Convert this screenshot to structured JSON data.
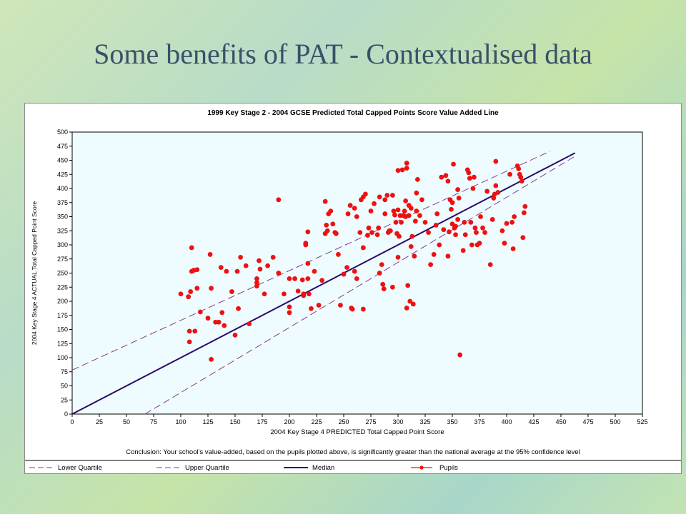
{
  "slide": {
    "title": "Some benefits of PAT - Contextualised data"
  },
  "colors": {
    "pupil_marker": "#ee1111",
    "median_line": "#2a0a6a",
    "quartile_line": "#8a3a8a",
    "plot_background": "#eefcff"
  },
  "chart_data": {
    "type": "scatter",
    "title": "1999 Key Stage 2 - 2004 GCSE Predicted Total Capped Points Score Value Added Line",
    "xlabel": "2004 Key Stage 4 PREDICTED Total Capped Point Score",
    "ylabel": "2004 Key Stage 4 ACTUAL Total Capped Point Score",
    "xlim": [
      0,
      525
    ],
    "ylim": [
      0,
      500
    ],
    "xticks": [
      "0",
      "25",
      "50",
      "75",
      "100",
      "125",
      "150",
      "175",
      "200",
      "225",
      "250",
      "275",
      "300",
      "325",
      "350",
      "375",
      "400",
      "425",
      "450",
      "475",
      "500",
      "525"
    ],
    "yticks": [
      "0",
      "25",
      "50",
      "75",
      "100",
      "125",
      "150",
      "175",
      "200",
      "225",
      "250",
      "275",
      "300",
      "325",
      "350",
      "375",
      "400",
      "425",
      "450",
      "475",
      "500"
    ],
    "grid": false,
    "legend_position": "bottom",
    "conclusion": "Conclusion: Your school's value-added, based on the pupils plotted above, is significantly greater than the national average at the 95% confidence level",
    "lines": [
      {
        "name": "Lower Quartile",
        "style": "dashed",
        "points": [
          [
            67,
            0
          ],
          [
            462,
            456
          ]
        ]
      },
      {
        "name": "Upper Quartile",
        "style": "dashed",
        "points": [
          [
            0,
            78
          ],
          [
            440,
            466
          ]
        ]
      },
      {
        "name": "Median",
        "style": "solid",
        "points": [
          [
            0,
            0
          ],
          [
            463,
            463
          ]
        ]
      }
    ],
    "series": [
      {
        "name": "Pupils",
        "points": [
          [
            100,
            213
          ],
          [
            107,
            208
          ],
          [
            108,
            128
          ],
          [
            108,
            147
          ],
          [
            109,
            217
          ],
          [
            110,
            253
          ],
          [
            110,
            295
          ],
          [
            112,
            255
          ],
          [
            113,
            147
          ],
          [
            115,
            256
          ],
          [
            115,
            223
          ],
          [
            118,
            181
          ],
          [
            125,
            170
          ],
          [
            127,
            283
          ],
          [
            128,
            223
          ],
          [
            128,
            97
          ],
          [
            132,
            163
          ],
          [
            135,
            163
          ],
          [
            137,
            260
          ],
          [
            138,
            180
          ],
          [
            140,
            157
          ],
          [
            142,
            253
          ],
          [
            147,
            217
          ],
          [
            150,
            140
          ],
          [
            152,
            253
          ],
          [
            153,
            187
          ],
          [
            155,
            278
          ],
          [
            160,
            263
          ],
          [
            163,
            160
          ],
          [
            170,
            240
          ],
          [
            170,
            233
          ],
          [
            170,
            227
          ],
          [
            172,
            272
          ],
          [
            173,
            257
          ],
          [
            177,
            213
          ],
          [
            180,
            263
          ],
          [
            185,
            278
          ],
          [
            190,
            380
          ],
          [
            190,
            250
          ],
          [
            195,
            213
          ],
          [
            200,
            240
          ],
          [
            200,
            190
          ],
          [
            200,
            180
          ],
          [
            205,
            240
          ],
          [
            208,
            218
          ],
          [
            212,
            238
          ],
          [
            213,
            213
          ],
          [
            213,
            210
          ],
          [
            215,
            300
          ],
          [
            215,
            303
          ],
          [
            217,
            267
          ],
          [
            217,
            323
          ],
          [
            217,
            240
          ],
          [
            218,
            213
          ],
          [
            220,
            187
          ],
          [
            223,
            253
          ],
          [
            227,
            193
          ],
          [
            230,
            237
          ],
          [
            233,
            377
          ],
          [
            233,
            320
          ],
          [
            234,
            335
          ],
          [
            235,
            325
          ],
          [
            236,
            355
          ],
          [
            238,
            360
          ],
          [
            240,
            337
          ],
          [
            242,
            322
          ],
          [
            243,
            320
          ],
          [
            245,
            283
          ],
          [
            247,
            193
          ],
          [
            250,
            248
          ],
          [
            253,
            260
          ],
          [
            254,
            355
          ],
          [
            256,
            370
          ],
          [
            257,
            188
          ],
          [
            258,
            186
          ],
          [
            260,
            365
          ],
          [
            260,
            253
          ],
          [
            262,
            240
          ],
          [
            262,
            350
          ],
          [
            265,
            322
          ],
          [
            266,
            380
          ],
          [
            268,
            385
          ],
          [
            268,
            295
          ],
          [
            268,
            186
          ],
          [
            270,
            390
          ],
          [
            272,
            317
          ],
          [
            273,
            330
          ],
          [
            275,
            360
          ],
          [
            276,
            322
          ],
          [
            278,
            373
          ],
          [
            281,
            318
          ],
          [
            282,
            330
          ],
          [
            283,
            385
          ],
          [
            283,
            250
          ],
          [
            285,
            265
          ],
          [
            286,
            230
          ],
          [
            287,
            222
          ],
          [
            288,
            380
          ],
          [
            288,
            355
          ],
          [
            290,
            388
          ],
          [
            291,
            322
          ],
          [
            292,
            325
          ],
          [
            293,
            325
          ],
          [
            295,
            225
          ],
          [
            295,
            388
          ],
          [
            296,
            360
          ],
          [
            297,
            353
          ],
          [
            298,
            340
          ],
          [
            299,
            320
          ],
          [
            300,
            362
          ],
          [
            300,
            432
          ],
          [
            300,
            278
          ],
          [
            301,
            315
          ],
          [
            302,
            352
          ],
          [
            303,
            340
          ],
          [
            304,
            433
          ],
          [
            305,
            352
          ],
          [
            306,
            360
          ],
          [
            307,
            350
          ],
          [
            307,
            378
          ],
          [
            308,
            436
          ],
          [
            308,
            445
          ],
          [
            308,
            188
          ],
          [
            309,
            228
          ],
          [
            310,
            352
          ],
          [
            310,
            370
          ],
          [
            311,
            200
          ],
          [
            312,
            297
          ],
          [
            312,
            365
          ],
          [
            313,
            315
          ],
          [
            314,
            195
          ],
          [
            315,
            280
          ],
          [
            316,
            342
          ],
          [
            317,
            360
          ],
          [
            317,
            392
          ],
          [
            318,
            416
          ],
          [
            320,
            352
          ],
          [
            322,
            380
          ],
          [
            325,
            340
          ],
          [
            328,
            322
          ],
          [
            330,
            265
          ],
          [
            333,
            283
          ],
          [
            335,
            335
          ],
          [
            336,
            355
          ],
          [
            338,
            300
          ],
          [
            340,
            420
          ],
          [
            342,
            327
          ],
          [
            344,
            423
          ],
          [
            346,
            280
          ],
          [
            346,
            413
          ],
          [
            347,
            323
          ],
          [
            348,
            380
          ],
          [
            349,
            363
          ],
          [
            350,
            375
          ],
          [
            350,
            337
          ],
          [
            351,
            443
          ],
          [
            352,
            330
          ],
          [
            353,
            318
          ],
          [
            353,
            333
          ],
          [
            355,
            398
          ],
          [
            355,
            345
          ],
          [
            356,
            383
          ],
          [
            357,
            105
          ],
          [
            360,
            290
          ],
          [
            361,
            340
          ],
          [
            362,
            318
          ],
          [
            364,
            433
          ],
          [
            365,
            428
          ],
          [
            366,
            418
          ],
          [
            367,
            340
          ],
          [
            368,
            300
          ],
          [
            369,
            400
          ],
          [
            370,
            420
          ],
          [
            371,
            330
          ],
          [
            372,
            322
          ],
          [
            373,
            300
          ],
          [
            375,
            303
          ],
          [
            376,
            350
          ],
          [
            378,
            330
          ],
          [
            380,
            322
          ],
          [
            382,
            395
          ],
          [
            385,
            265
          ],
          [
            387,
            345
          ],
          [
            388,
            383
          ],
          [
            389,
            390
          ],
          [
            390,
            448
          ],
          [
            390,
            405
          ],
          [
            392,
            393
          ],
          [
            396,
            325
          ],
          [
            398,
            303
          ],
          [
            400,
            338
          ],
          [
            403,
            425
          ],
          [
            405,
            340
          ],
          [
            406,
            293
          ],
          [
            407,
            350
          ],
          [
            410,
            440
          ],
          [
            411,
            435
          ],
          [
            412,
            425
          ],
          [
            413,
            420
          ],
          [
            414,
            413
          ],
          [
            415,
            313
          ],
          [
            416,
            357
          ],
          [
            417,
            368
          ]
        ]
      }
    ],
    "legend": [
      {
        "name": "Lower Quartile",
        "symbol": "dashed"
      },
      {
        "name": "Upper Quartile",
        "symbol": "dashed"
      },
      {
        "name": "Median",
        "symbol": "solid"
      },
      {
        "name": "Pupils",
        "symbol": "marker"
      }
    ]
  }
}
